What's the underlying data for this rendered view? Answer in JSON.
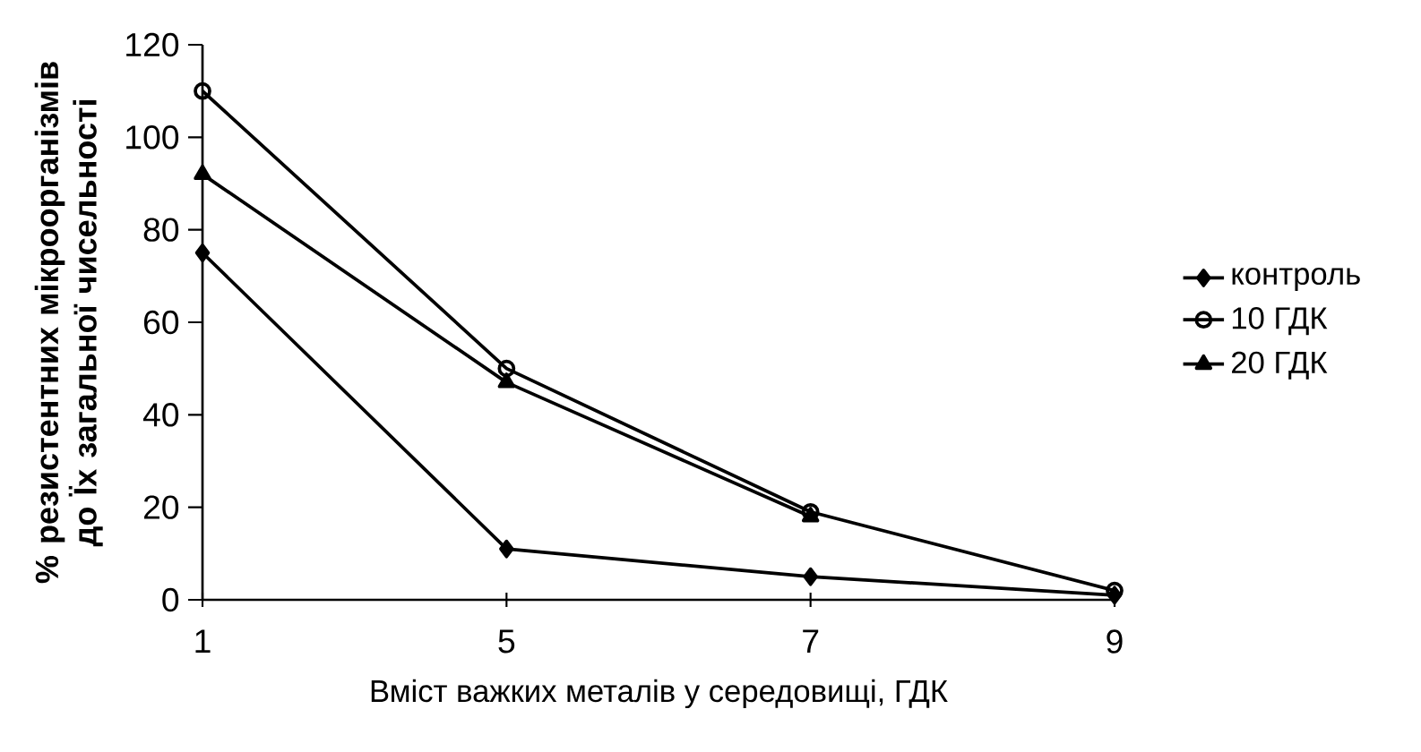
{
  "chart_data": {
    "type": "line",
    "xlabel": "Вміст важких металів у середовищі, ГДК",
    "ylabel": "% резистентних мікроорганізмів до Їх загальної чисельності",
    "categories": [
      "1",
      "5",
      "7",
      "9"
    ],
    "ylim": [
      0,
      120
    ],
    "yticks": [
      0,
      20,
      40,
      60,
      80,
      100,
      120
    ],
    "grid": false,
    "legend": "right",
    "line_style": "solid",
    "series": [
      {
        "name": "контроль",
        "color": "#000000",
        "marker": "diamond",
        "values": [
          75,
          11,
          5,
          1
        ]
      },
      {
        "name": "10 ГДК",
        "color": "#000000",
        "marker": "circle",
        "values": [
          110,
          50,
          19,
          2
        ]
      },
      {
        "name": "20 ГДК",
        "color": "#000000",
        "marker": "triangle",
        "values": [
          92,
          47,
          18,
          null
        ]
      }
    ]
  }
}
